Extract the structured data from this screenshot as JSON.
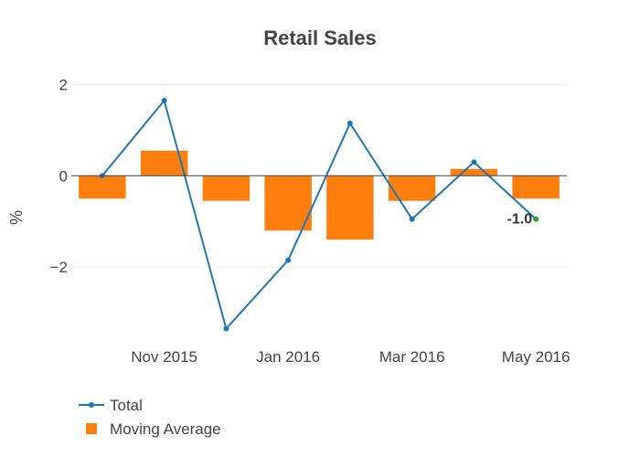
{
  "chart_data": {
    "type": "bar+line",
    "title": "Retail Sales",
    "xlabel": "",
    "ylabel": "%",
    "x_ticks": [
      {
        "label": "Nov 2015",
        "index": 1
      },
      {
        "label": "Jan 2016",
        "index": 3
      },
      {
        "label": "Mar 2016",
        "index": 5
      },
      {
        "label": "May 2016",
        "index": 7
      }
    ],
    "y_ticks": [
      {
        "label": "2",
        "value": 2
      },
      {
        "label": "0",
        "value": 0
      },
      {
        "label": "−2",
        "value": -2
      }
    ],
    "ylim": [
      -3.6,
      2.25
    ],
    "grid": true,
    "legend_position": "bottom-left",
    "series": [
      {
        "name": "Total",
        "kind": "line",
        "color": "#1f77b4",
        "values": [
          0.0,
          1.65,
          -3.35,
          -1.85,
          1.15,
          -0.95,
          0.3,
          -0.95
        ]
      },
      {
        "name": "Moving Average",
        "kind": "bar",
        "color": "#ff7f0e",
        "values": [
          -0.5,
          0.55,
          -0.55,
          -1.2,
          -1.4,
          -0.55,
          0.15,
          -0.5
        ]
      }
    ],
    "annotation": {
      "text": "-1.0",
      "index": 7,
      "value": -0.95,
      "marker_color": "#2ca02c"
    }
  }
}
